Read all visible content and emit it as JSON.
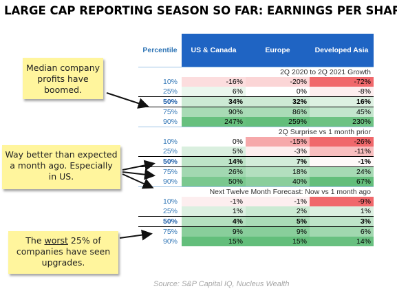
{
  "title": "LARGE CAP REPORTING SEASON SO FAR: EARNINGS PER SHARE",
  "header": {
    "percentile": "Percentile",
    "regions": [
      "US & Canada",
      "Europe",
      "Developed Asia"
    ]
  },
  "colors": {
    "header_bg": "#1f64c3",
    "percentile_text": "#2e74b5",
    "note_bg": "#fff59d"
  },
  "notes": [
    {
      "text": "Median company profits have boomed."
    },
    {
      "text": "Way better than expected a month ago. Especially in US."
    },
    {
      "text_before": "The ",
      "text_underlined": "worst",
      "text_after": " 25% of companies have seen upgrades."
    }
  ],
  "source": "Source: S&P Capital IQ, Nucleus Wealth",
  "chart_data": {
    "type": "table",
    "title": "LARGE CAP REPORTING SEASON SO FAR: EARNINGS PER SHARE",
    "columns": [
      "US & Canada",
      "Europe",
      "Developed Asia"
    ],
    "percentiles": [
      "10%",
      "25%",
      "50%",
      "75%",
      "90%"
    ],
    "sections": [
      {
        "name": "2Q 2020 to 2Q 2021 Growth",
        "rows": [
          {
            "p": "10%",
            "values": [
              -16,
              -20,
              -72
            ],
            "labels": [
              "-16%",
              "-20%",
              "-72%"
            ]
          },
          {
            "p": "25%",
            "values": [
              6,
              0,
              -8
            ],
            "labels": [
              "6%",
              "0%",
              "-8%"
            ]
          },
          {
            "p": "50%",
            "values": [
              34,
              32,
              16
            ],
            "labels": [
              "34%",
              "32%",
              "16%"
            ]
          },
          {
            "p": "75%",
            "values": [
              90,
              86,
              45
            ],
            "labels": [
              "90%",
              "86%",
              "45%"
            ]
          },
          {
            "p": "90%",
            "values": [
              247,
              259,
              230
            ],
            "labels": [
              "247%",
              "259%",
              "230%"
            ]
          }
        ]
      },
      {
        "name": "2Q Surprise vs 1 month prior",
        "rows": [
          {
            "p": "10%",
            "values": [
              0,
              -15,
              -26
            ],
            "labels": [
              "0%",
              "-15%",
              "-26%"
            ]
          },
          {
            "p": "25%",
            "values": [
              5,
              -3,
              -11
            ],
            "labels": [
              "5%",
              "-3%",
              "-11%"
            ]
          },
          {
            "p": "50%",
            "values": [
              14,
              7,
              -1
            ],
            "labels": [
              "14%",
              "7%",
              "-1%"
            ]
          },
          {
            "p": "75%",
            "values": [
              26,
              18,
              24
            ],
            "labels": [
              "26%",
              "18%",
              "24%"
            ]
          },
          {
            "p": "90%",
            "values": [
              50,
              40,
              67
            ],
            "labels": [
              "50%",
              "40%",
              "67%"
            ]
          }
        ]
      },
      {
        "name": "Next Twelve Month Forecast: Now vs 1 month ago",
        "rows": [
          {
            "p": "10%",
            "values": [
              -1,
              -1,
              -9
            ],
            "labels": [
              "-1%",
              "-1%",
              "-9%"
            ]
          },
          {
            "p": "25%",
            "values": [
              1,
              2,
              1
            ],
            "labels": [
              "1%",
              "2%",
              "1%"
            ]
          },
          {
            "p": "50%",
            "values": [
              4,
              5,
              3
            ],
            "labels": [
              "4%",
              "5%",
              "3%"
            ]
          },
          {
            "p": "75%",
            "values": [
              9,
              9,
              6
            ],
            "labels": [
              "9%",
              "9%",
              "6%"
            ]
          },
          {
            "p": "90%",
            "values": [
              15,
              15,
              14
            ],
            "labels": [
              "15%",
              "15%",
              "14%"
            ]
          }
        ]
      }
    ]
  }
}
